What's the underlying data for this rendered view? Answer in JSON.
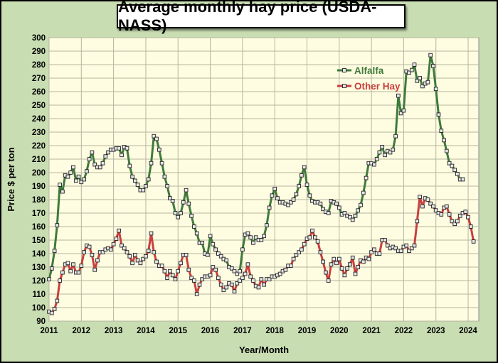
{
  "chart_data": {
    "type": "line",
    "title": "Average monthly hay price (USDA-NASS)",
    "xlabel": "Year/Month",
    "ylabel": "Price $ per ton",
    "ylim": [
      90,
      300
    ],
    "yticks": [
      90,
      100,
      110,
      120,
      130,
      140,
      150,
      160,
      170,
      180,
      190,
      200,
      210,
      220,
      230,
      240,
      250,
      260,
      270,
      280,
      290,
      300
    ],
    "xlim": [
      2011,
      2024.33
    ],
    "xticks": [
      "2011",
      "2012",
      "2013",
      "2014",
      "2015",
      "2016",
      "2017",
      "2018",
      "2019",
      "2020",
      "2021",
      "2022",
      "2023",
      "2024"
    ],
    "grid": true,
    "legend_position": "top-right",
    "x_start_year": 2011,
    "series": [
      {
        "name": "Alfalfa",
        "color": "#3f7a3c",
        "values": [
          121,
          129,
          142,
          161,
          191,
          186,
          198,
          197,
          200,
          204,
          194,
          197,
          193,
          195,
          201,
          210,
          215,
          206,
          204,
          204,
          207,
          212,
          215,
          217,
          217,
          218,
          218,
          213,
          219,
          218,
          205,
          197,
          194,
          191,
          187,
          187,
          190,
          195,
          207,
          227,
          225,
          217,
          207,
          197,
          190,
          181,
          179,
          170,
          167,
          170,
          178,
          187,
          177,
          168,
          160,
          155,
          148,
          148,
          140,
          139,
          153,
          147,
          143,
          140,
          138,
          136,
          135,
          130,
          129,
          127,
          125,
          127,
          143,
          154,
          155,
          152,
          148,
          152,
          150,
          150,
          153,
          161,
          174,
          183,
          188,
          181,
          178,
          178,
          177,
          176,
          178,
          180,
          184,
          190,
          198,
          204,
          191,
          183,
          179,
          178,
          178,
          177,
          173,
          171,
          170,
          179,
          178,
          177,
          174,
          169,
          170,
          168,
          167,
          165,
          168,
          172,
          176,
          185,
          196,
          207,
          207,
          206,
          210,
          215,
          219,
          213,
          216,
          215,
          217,
          227,
          257,
          244,
          246,
          275,
          274,
          276,
          280,
          268,
          270,
          264,
          266,
          267,
          287,
          279,
          262,
          243,
          231,
          224,
          216,
          207,
          205,
          202,
          199,
          195,
          195
        ]
      },
      {
        "name": "Other Hay",
        "color": "#c8403f",
        "values": [
          97,
          96,
          99,
          105,
          120,
          126,
          132,
          133,
          127,
          132,
          126,
          126,
          131,
          141,
          146,
          145,
          139,
          128,
          135,
          141,
          141,
          143,
          144,
          143,
          147,
          151,
          157,
          146,
          144,
          141,
          138,
          133,
          139,
          135,
          133,
          136,
          138,
          142,
          155,
          141,
          134,
          131,
          131,
          127,
          122,
          127,
          124,
          121,
          127,
          133,
          139,
          139,
          128,
          122,
          120,
          110,
          117,
          121,
          123,
          123,
          124,
          130,
          128,
          122,
          117,
          113,
          115,
          118,
          117,
          112,
          118,
          120,
          122,
          125,
          132,
          123,
          120,
          116,
          115,
          121,
          117,
          121,
          121,
          123,
          123,
          124,
          125,
          127,
          128,
          131,
          131,
          136,
          139,
          141,
          143,
          147,
          151,
          152,
          157,
          152,
          149,
          141,
          134,
          126,
          120,
          132,
          136,
          133,
          136,
          129,
          124,
          129,
          132,
          137,
          125,
          130,
          135,
          134,
          137,
          136,
          141,
          143,
          140,
          140,
          150,
          150,
          146,
          144,
          145,
          144,
          142,
          142,
          145,
          146,
          142,
          144,
          146,
          164,
          182,
          175,
          181,
          180,
          177,
          175,
          172,
          170,
          169,
          174,
          175,
          169,
          164,
          162,
          164,
          168,
          170,
          171,
          167,
          160,
          149
        ]
      }
    ]
  }
}
